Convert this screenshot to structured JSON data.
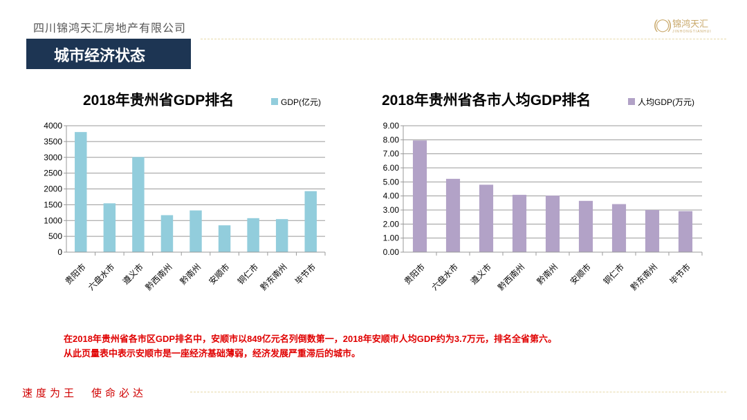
{
  "header": {
    "company": "四川锦鸿天汇房地产有限公司",
    "logo_text": "锦鸿天汇",
    "logo_sub": "JINHONGTIANHUI",
    "section_title": "城市经济状态"
  },
  "chart_data": [
    {
      "type": "bar",
      "title": "2018年贵州省GDP排名",
      "legend": "GDP(亿元)",
      "legend_placement": "top-right",
      "color": "#92cddc",
      "categories": [
        "贵阳市",
        "六盘水市",
        "遵义市",
        "黔西南州",
        "黔南州",
        "安顺市",
        "铜仁市",
        "黔东南州",
        "毕节市"
      ],
      "values": [
        3800,
        1545,
        3010,
        1170,
        1320,
        849,
        1075,
        1045,
        1930
      ],
      "ylim": [
        0,
        4000
      ],
      "yticks": [
        "0",
        "500",
        "1000",
        "1500",
        "2000",
        "2500",
        "3000",
        "3500",
        "4000"
      ],
      "grid": true
    },
    {
      "type": "bar",
      "title": "2018年贵州省各市人均GDP排名",
      "legend": "人均GDP(万元)",
      "legend_placement": "top-right",
      "color": "#b2a2c7",
      "categories": [
        "贵阳市",
        "六盘水市",
        "遵义市",
        "黔西南州",
        "黔南州",
        "安顺市",
        "铜仁市",
        "黔东南州",
        "毕节市"
      ],
      "values": [
        7.95,
        5.22,
        4.8,
        4.08,
        4.02,
        3.65,
        3.42,
        3.0,
        2.92
      ],
      "ylim": [
        0,
        9
      ],
      "yticks": [
        "0.00",
        "1.00",
        "2.00",
        "3.00",
        "4.00",
        "5.00",
        "6.00",
        "7.00",
        "8.00",
        "9.00"
      ],
      "grid": true
    }
  ],
  "note": {
    "line1": "在2018年贵州省各市区GDP排名中，安顺市以849亿元名列倒数第一，2018年安顺市人均GDP约为3.7万元，排名全省第六。",
    "line2": "从此页量表中表示安顺市是一座经济基础薄弱，经济发展严重滞后的城市。"
  },
  "footer": {
    "slogan1": "速度为王",
    "slogan2": "使命必达"
  }
}
